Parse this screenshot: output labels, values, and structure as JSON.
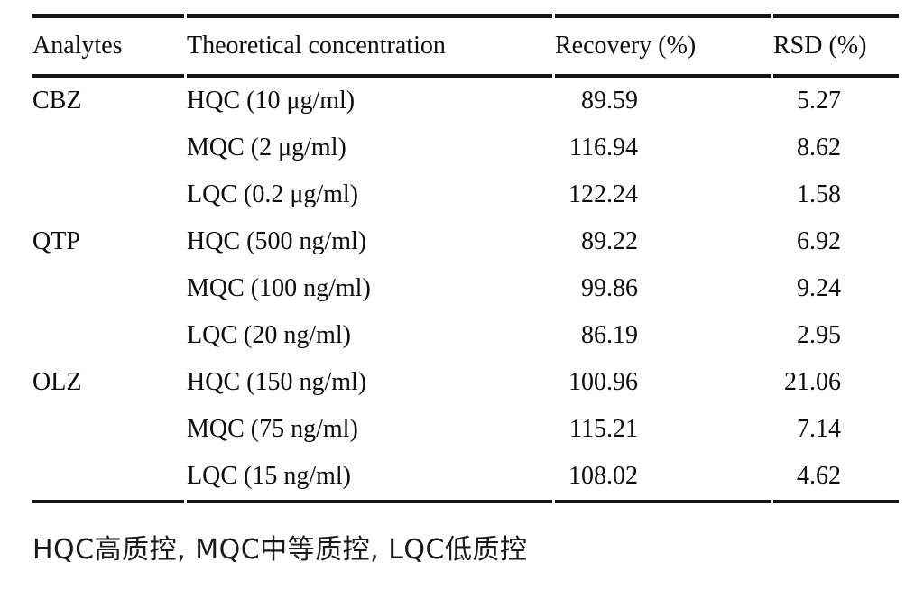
{
  "colors": {
    "background": "#ffffff",
    "text": "#0d0d0d",
    "rule": "#161616"
  },
  "table": {
    "columns": [
      "Analytes",
      "Theoretical concentration",
      "Recovery (%)",
      "RSD (%)"
    ],
    "rows": [
      {
        "analyte": "CBZ",
        "concentration": "HQC (10 μg/ml)",
        "recovery": "89.59",
        "rsd": "5.27"
      },
      {
        "analyte": "",
        "concentration": "MQC (2 μg/ml)",
        "recovery": "116.94",
        "rsd": "8.62"
      },
      {
        "analyte": "",
        "concentration": "LQC (0.2 μg/ml)",
        "recovery": "122.24",
        "rsd": "1.58"
      },
      {
        "analyte": "QTP",
        "concentration": "HQC (500 ng/ml)",
        "recovery": "89.22",
        "rsd": "6.92"
      },
      {
        "analyte": "",
        "concentration": "MQC (100 ng/ml)",
        "recovery": "99.86",
        "rsd": "9.24"
      },
      {
        "analyte": "",
        "concentration": "LQC (20 ng/ml)",
        "recovery": "86.19",
        "rsd": "2.95"
      },
      {
        "analyte": "OLZ",
        "concentration": "HQC (150 ng/ml)",
        "recovery": "100.96",
        "rsd": "21.06"
      },
      {
        "analyte": "",
        "concentration": "MQC (75 ng/ml)",
        "recovery": "115.21",
        "rsd": "7.14"
      },
      {
        "analyte": "",
        "concentration": "LQC (15 ng/ml)",
        "recovery": "108.02",
        "rsd": "4.62"
      }
    ],
    "footnote": "HQC高质控, MQC中等质控, LQC低质控"
  },
  "chart_data": {
    "type": "table",
    "title": "",
    "columns": [
      "Analytes",
      "Theoretical concentration",
      "Recovery (%)",
      "RSD (%)"
    ],
    "rows": [
      [
        "CBZ",
        "HQC (10 μg/ml)",
        89.59,
        5.27
      ],
      [
        "",
        "MQC (2 μg/ml)",
        116.94,
        8.62
      ],
      [
        "",
        "LQC (0.2 μg/ml)",
        122.24,
        1.58
      ],
      [
        "QTP",
        "HQC (500 ng/ml)",
        89.22,
        6.92
      ],
      [
        "",
        "MQC (100 ng/ml)",
        99.86,
        9.24
      ],
      [
        "",
        "LQC (20 ng/ml)",
        86.19,
        2.95
      ],
      [
        "OLZ",
        "HQC (150 ng/ml)",
        100.96,
        21.06
      ],
      [
        "",
        "MQC (75 ng/ml)",
        115.21,
        7.14
      ],
      [
        "",
        "LQC (15 ng/ml)",
        108.02,
        4.62
      ]
    ],
    "footnote": "HQC高质控, MQC中等质控, LQC低质控"
  }
}
